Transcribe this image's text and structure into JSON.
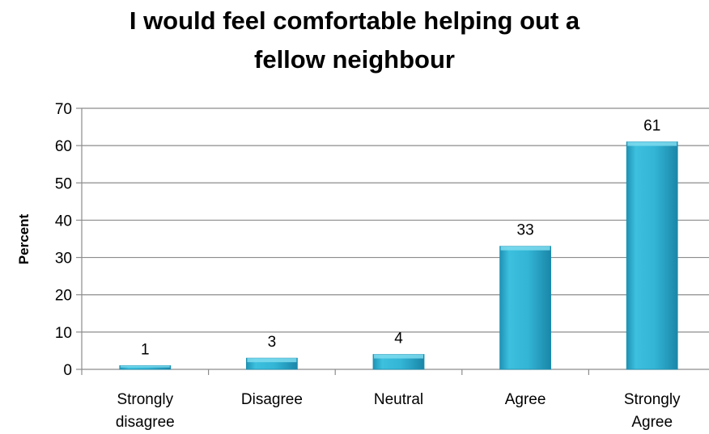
{
  "chart_data": {
    "type": "bar",
    "title_lines": [
      "I would feel comfortable helping out a",
      "fellow neighbour"
    ],
    "ylabel": "Percent",
    "xlabel": "",
    "categories": [
      [
        "Strongly",
        "disagree"
      ],
      [
        "Disagree"
      ],
      [
        "Neutral"
      ],
      [
        "Agree"
      ],
      [
        "Strongly",
        "Agree"
      ]
    ],
    "values": [
      1,
      3,
      4,
      33,
      61
    ],
    "value_labels": [
      "1",
      "3",
      "4",
      "33",
      "61"
    ],
    "ylim": [
      0,
      70
    ],
    "yticks": [
      0,
      10,
      20,
      30,
      40,
      50,
      60,
      70
    ],
    "grid": true,
    "legend": "none",
    "colors": {
      "bar": "#2fb3d4",
      "bar_top": "#7fdcef",
      "bar_dark": "#1d8fb0",
      "grid": "#8c8c8c",
      "axis": "#8c8c8c"
    }
  }
}
